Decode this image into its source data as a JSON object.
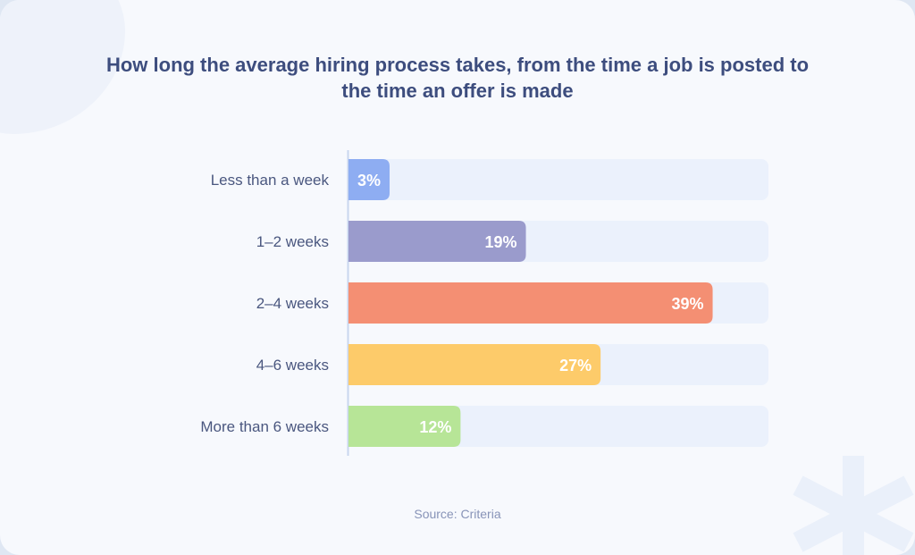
{
  "chart_data": {
    "type": "bar",
    "orientation": "horizontal",
    "title": "How long the average hiring process takes, from the time a job is posted to the time an offer is made",
    "categories": [
      "Less than a week",
      "1–2 weeks",
      "2–4 weeks",
      "4–6 weeks",
      "More than 6 weeks"
    ],
    "values": [
      3,
      19,
      39,
      27,
      12
    ],
    "value_labels": [
      "3%",
      "19%",
      "39%",
      "27%",
      "12%"
    ],
    "colors": [
      "#8eadf2",
      "#9a9bcc",
      "#f48f73",
      "#fdcb6a",
      "#b7e597"
    ],
    "track_color": "#ebf1fc",
    "xlim": [
      0,
      100
    ],
    "grid": false,
    "legend": "none"
  },
  "source": "Source: Criteria"
}
